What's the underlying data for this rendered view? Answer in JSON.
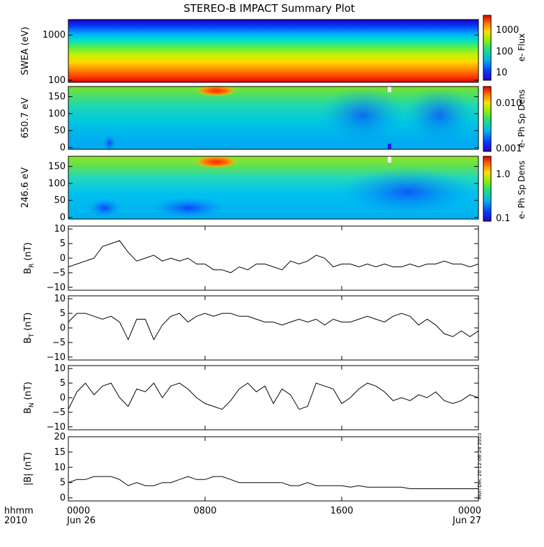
{
  "title": "STEREO-B IMPACT Summary Plot",
  "time_axis": {
    "hhmm_label": "hhmm",
    "year_label": "2010",
    "ticks": [
      {
        "hour": 0,
        "label": "0000",
        "date": "Jun 26"
      },
      {
        "hour": 8,
        "label": "0800",
        "date": ""
      },
      {
        "hour": 16,
        "label": "1600",
        "date": ""
      },
      {
        "hour": 24,
        "label": "0000",
        "date": "Jun 27"
      }
    ]
  },
  "timestamp_note": "Mon Dec 20 12:06:24 2010",
  "spectrograms": [
    {
      "id": "swea",
      "ylabel": "SWEA (eV)",
      "yscale": "log",
      "ylim": [
        90,
        2200
      ],
      "yticks": [
        {
          "v": 100,
          "label": "100"
        },
        {
          "v": 1000,
          "label": "1000"
        }
      ],
      "colorbar_label": "e- Flux",
      "colorbar_ticks": [
        {
          "label": "1000"
        },
        {
          "label": "100"
        },
        {
          "label": "10"
        }
      ],
      "description_colors": [
        "#d40000",
        "#ff6a00",
        "#ffd000",
        "#7ee000",
        "#00c8d0",
        "#1060ff",
        "#1000c0"
      ]
    },
    {
      "id": "pad650",
      "ylabel": "650.7 eV",
      "yscale": "linear",
      "ylim": [
        -5,
        180
      ],
      "yticks": [
        {
          "v": 0,
          "label": "0"
        },
        {
          "v": 50,
          "label": "50"
        },
        {
          "v": 100,
          "label": "100"
        },
        {
          "v": 150,
          "label": "150"
        }
      ],
      "colorbar_label": "e- Ph Sp Dens",
      "colorbar_ticks": [
        {
          "label": "0.010"
        },
        {
          "label": "0.001"
        }
      ]
    },
    {
      "id": "pad246",
      "ylabel": "246.6 eV",
      "yscale": "linear",
      "ylim": [
        -5,
        180
      ],
      "yticks": [
        {
          "v": 0,
          "label": "0"
        },
        {
          "v": 50,
          "label": "50"
        },
        {
          "v": 100,
          "label": "100"
        },
        {
          "v": 150,
          "label": "150"
        }
      ],
      "colorbar_label": "e- Ph Sp Dens",
      "colorbar_ticks": [
        {
          "label": "1.0"
        },
        {
          "label": "0.1"
        }
      ]
    }
  ],
  "chart_data": [
    {
      "type": "line",
      "ylabel_main": "B",
      "ylabel_sub": "R",
      "ylabel_unit": "(nT)",
      "ylim": [
        -11,
        11
      ],
      "yticks": [
        {
          "v": -10,
          "label": "−10"
        },
        {
          "v": -5,
          "label": "−5"
        },
        {
          "v": 0,
          "label": "0"
        },
        {
          "v": 5,
          "label": "5"
        },
        {
          "v": 10,
          "label": "10"
        }
      ],
      "x": [
        0,
        0.5,
        1,
        1.5,
        2,
        2.5,
        3,
        3.5,
        4,
        4.5,
        5,
        5.5,
        6,
        6.5,
        7,
        7.5,
        8,
        8.5,
        9,
        9.5,
        10,
        10.5,
        11,
        11.5,
        12,
        12.5,
        13,
        13.5,
        14,
        14.5,
        15,
        15.5,
        16,
        16.5,
        17,
        17.5,
        18,
        18.5,
        19,
        19.5,
        20,
        20.5,
        21,
        21.5,
        22,
        22.5,
        23,
        23.5,
        24
      ],
      "values": [
        -3,
        -2,
        -1,
        0,
        4,
        5,
        6,
        2,
        -1,
        0,
        1,
        -1,
        0,
        -1,
        0,
        -2,
        -2,
        -4,
        -4,
        -5,
        -3,
        -4,
        -2,
        -2,
        -3,
        -4,
        -1,
        -2,
        -1,
        1,
        0,
        -3,
        -2,
        -2,
        -3,
        -2,
        -3,
        -2,
        -3,
        -3,
        -2,
        -3,
        -2,
        -2,
        -1,
        -2,
        -2,
        -3,
        -2
      ]
    },
    {
      "type": "line",
      "ylabel_main": "B",
      "ylabel_sub": "T",
      "ylabel_unit": "(nT)",
      "ylim": [
        -11,
        11
      ],
      "yticks": [
        {
          "v": -10,
          "label": "−10"
        },
        {
          "v": -5,
          "label": "−5"
        },
        {
          "v": 0,
          "label": "0"
        },
        {
          "v": 5,
          "label": "5"
        },
        {
          "v": 10,
          "label": "10"
        }
      ],
      "x": [
        0,
        0.5,
        1,
        1.5,
        2,
        2.5,
        3,
        3.5,
        4,
        4.5,
        5,
        5.5,
        6,
        6.5,
        7,
        7.5,
        8,
        8.5,
        9,
        9.5,
        10,
        10.5,
        11,
        11.5,
        12,
        12.5,
        13,
        13.5,
        14,
        14.5,
        15,
        15.5,
        16,
        16.5,
        17,
        17.5,
        18,
        18.5,
        19,
        19.5,
        20,
        20.5,
        21,
        21.5,
        22,
        22.5,
        23,
        23.5,
        24
      ],
      "values": [
        2,
        5,
        5,
        4,
        3,
        4,
        2,
        -4,
        3,
        3,
        -4,
        1,
        4,
        5,
        2,
        4,
        5,
        4,
        5,
        5,
        4,
        4,
        3,
        2,
        2,
        1,
        2,
        3,
        2,
        3,
        1,
        3,
        2,
        2,
        3,
        4,
        3,
        2,
        4,
        5,
        4,
        1,
        3,
        1,
        -2,
        -3,
        -1,
        -3,
        -1
      ]
    },
    {
      "type": "line",
      "ylabel_main": "B",
      "ylabel_sub": "N",
      "ylabel_unit": "(nT)",
      "ylim": [
        -11,
        11
      ],
      "yticks": [
        {
          "v": -10,
          "label": "−10"
        },
        {
          "v": -5,
          "label": "−5"
        },
        {
          "v": 0,
          "label": "0"
        },
        {
          "v": 5,
          "label": "5"
        },
        {
          "v": 10,
          "label": "10"
        }
      ],
      "x": [
        0,
        0.5,
        1,
        1.5,
        2,
        2.5,
        3,
        3.5,
        4,
        4.5,
        5,
        5.5,
        6,
        6.5,
        7,
        7.5,
        8,
        8.5,
        9,
        9.5,
        10,
        10.5,
        11,
        11.5,
        12,
        12.5,
        13,
        13.5,
        14,
        14.5,
        15,
        15.5,
        16,
        16.5,
        17,
        17.5,
        18,
        18.5,
        19,
        19.5,
        20,
        20.5,
        21,
        21.5,
        22,
        22.5,
        23,
        23.5,
        24
      ],
      "values": [
        -4,
        2,
        5,
        1,
        4,
        5,
        0,
        -3,
        3,
        2,
        5,
        0,
        4,
        5,
        3,
        0,
        -2,
        -3,
        -4,
        -1,
        3,
        5,
        2,
        4,
        -2,
        3,
        1,
        -4,
        -3,
        5,
        4,
        3,
        -2,
        0,
        3,
        5,
        4,
        2,
        -1,
        0,
        -1,
        1,
        0,
        2,
        -1,
        -2,
        -1,
        1,
        0
      ]
    },
    {
      "type": "line",
      "ylabel_main": "|B|",
      "ylabel_sub": "",
      "ylabel_unit": "(nT)",
      "ylim": [
        -1,
        20
      ],
      "yticks": [
        {
          "v": 0,
          "label": "0"
        },
        {
          "v": 5,
          "label": "5"
        },
        {
          "v": 10,
          "label": "10"
        },
        {
          "v": 15,
          "label": "15"
        },
        {
          "v": 20,
          "label": "20"
        }
      ],
      "x": [
        0,
        0.5,
        1,
        1.5,
        2,
        2.5,
        3,
        3.5,
        4,
        4.5,
        5,
        5.5,
        6,
        6.5,
        7,
        7.5,
        8,
        8.5,
        9,
        9.5,
        10,
        10.5,
        11,
        11.5,
        12,
        12.5,
        13,
        13.5,
        14,
        14.5,
        15,
        15.5,
        16,
        16.5,
        17,
        17.5,
        18,
        18.5,
        19,
        19.5,
        20,
        20.5,
        21,
        21.5,
        22,
        22.5,
        23,
        23.5,
        24
      ],
      "values": [
        5,
        6,
        6,
        7,
        7,
        7,
        6,
        4,
        5,
        4,
        4,
        5,
        5,
        6,
        7,
        6,
        6,
        7,
        7,
        6,
        5,
        5,
        5,
        5,
        5,
        5,
        4,
        4,
        5,
        4,
        4,
        4,
        4,
        3.5,
        4,
        3.5,
        3.5,
        3.5,
        3.5,
        3.5,
        3,
        3,
        3,
        3,
        3,
        3,
        3,
        3,
        3
      ]
    }
  ]
}
